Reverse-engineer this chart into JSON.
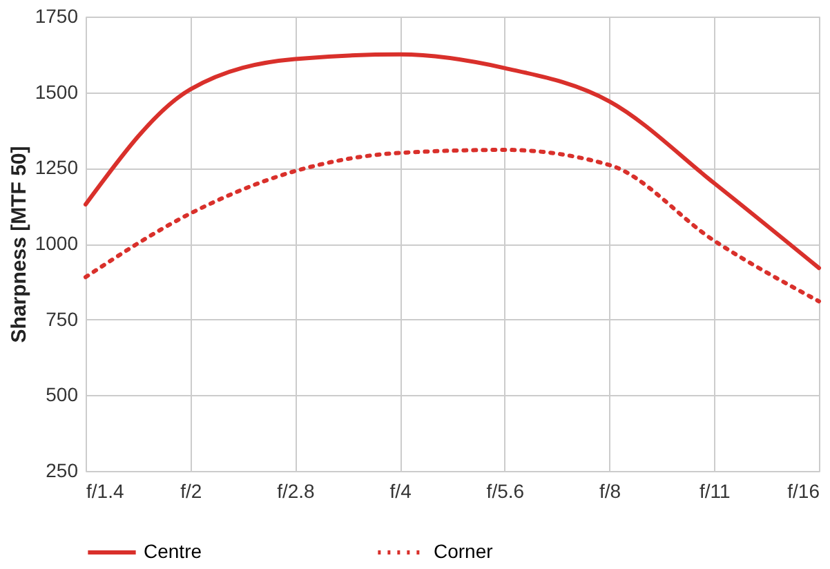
{
  "chart_data": {
    "type": "line",
    "ylabel": "Sharpness [MTF 50]",
    "categories": [
      "f/1.4",
      "f/2",
      "f/2.8",
      "f/4",
      "f/5.6",
      "f/8",
      "f/11",
      "f/16"
    ],
    "series": [
      {
        "name": "Centre",
        "color": "#d9302b",
        "line_style": "solid",
        "values": [
          1130,
          1510,
          1610,
          1625,
          1580,
          1470,
          1200,
          920
        ]
      },
      {
        "name": "Corner",
        "color": "#d9302b",
        "line_style": "dotted",
        "values": [
          890,
          1100,
          1240,
          1300,
          1310,
          1260,
          1010,
          810
        ]
      }
    ],
    "ylim": [
      250,
      1750
    ],
    "yticks": [
      250,
      500,
      750,
      1000,
      1250,
      1500,
      1750
    ],
    "grid": true,
    "legend": "bottom",
    "marker": "none"
  }
}
